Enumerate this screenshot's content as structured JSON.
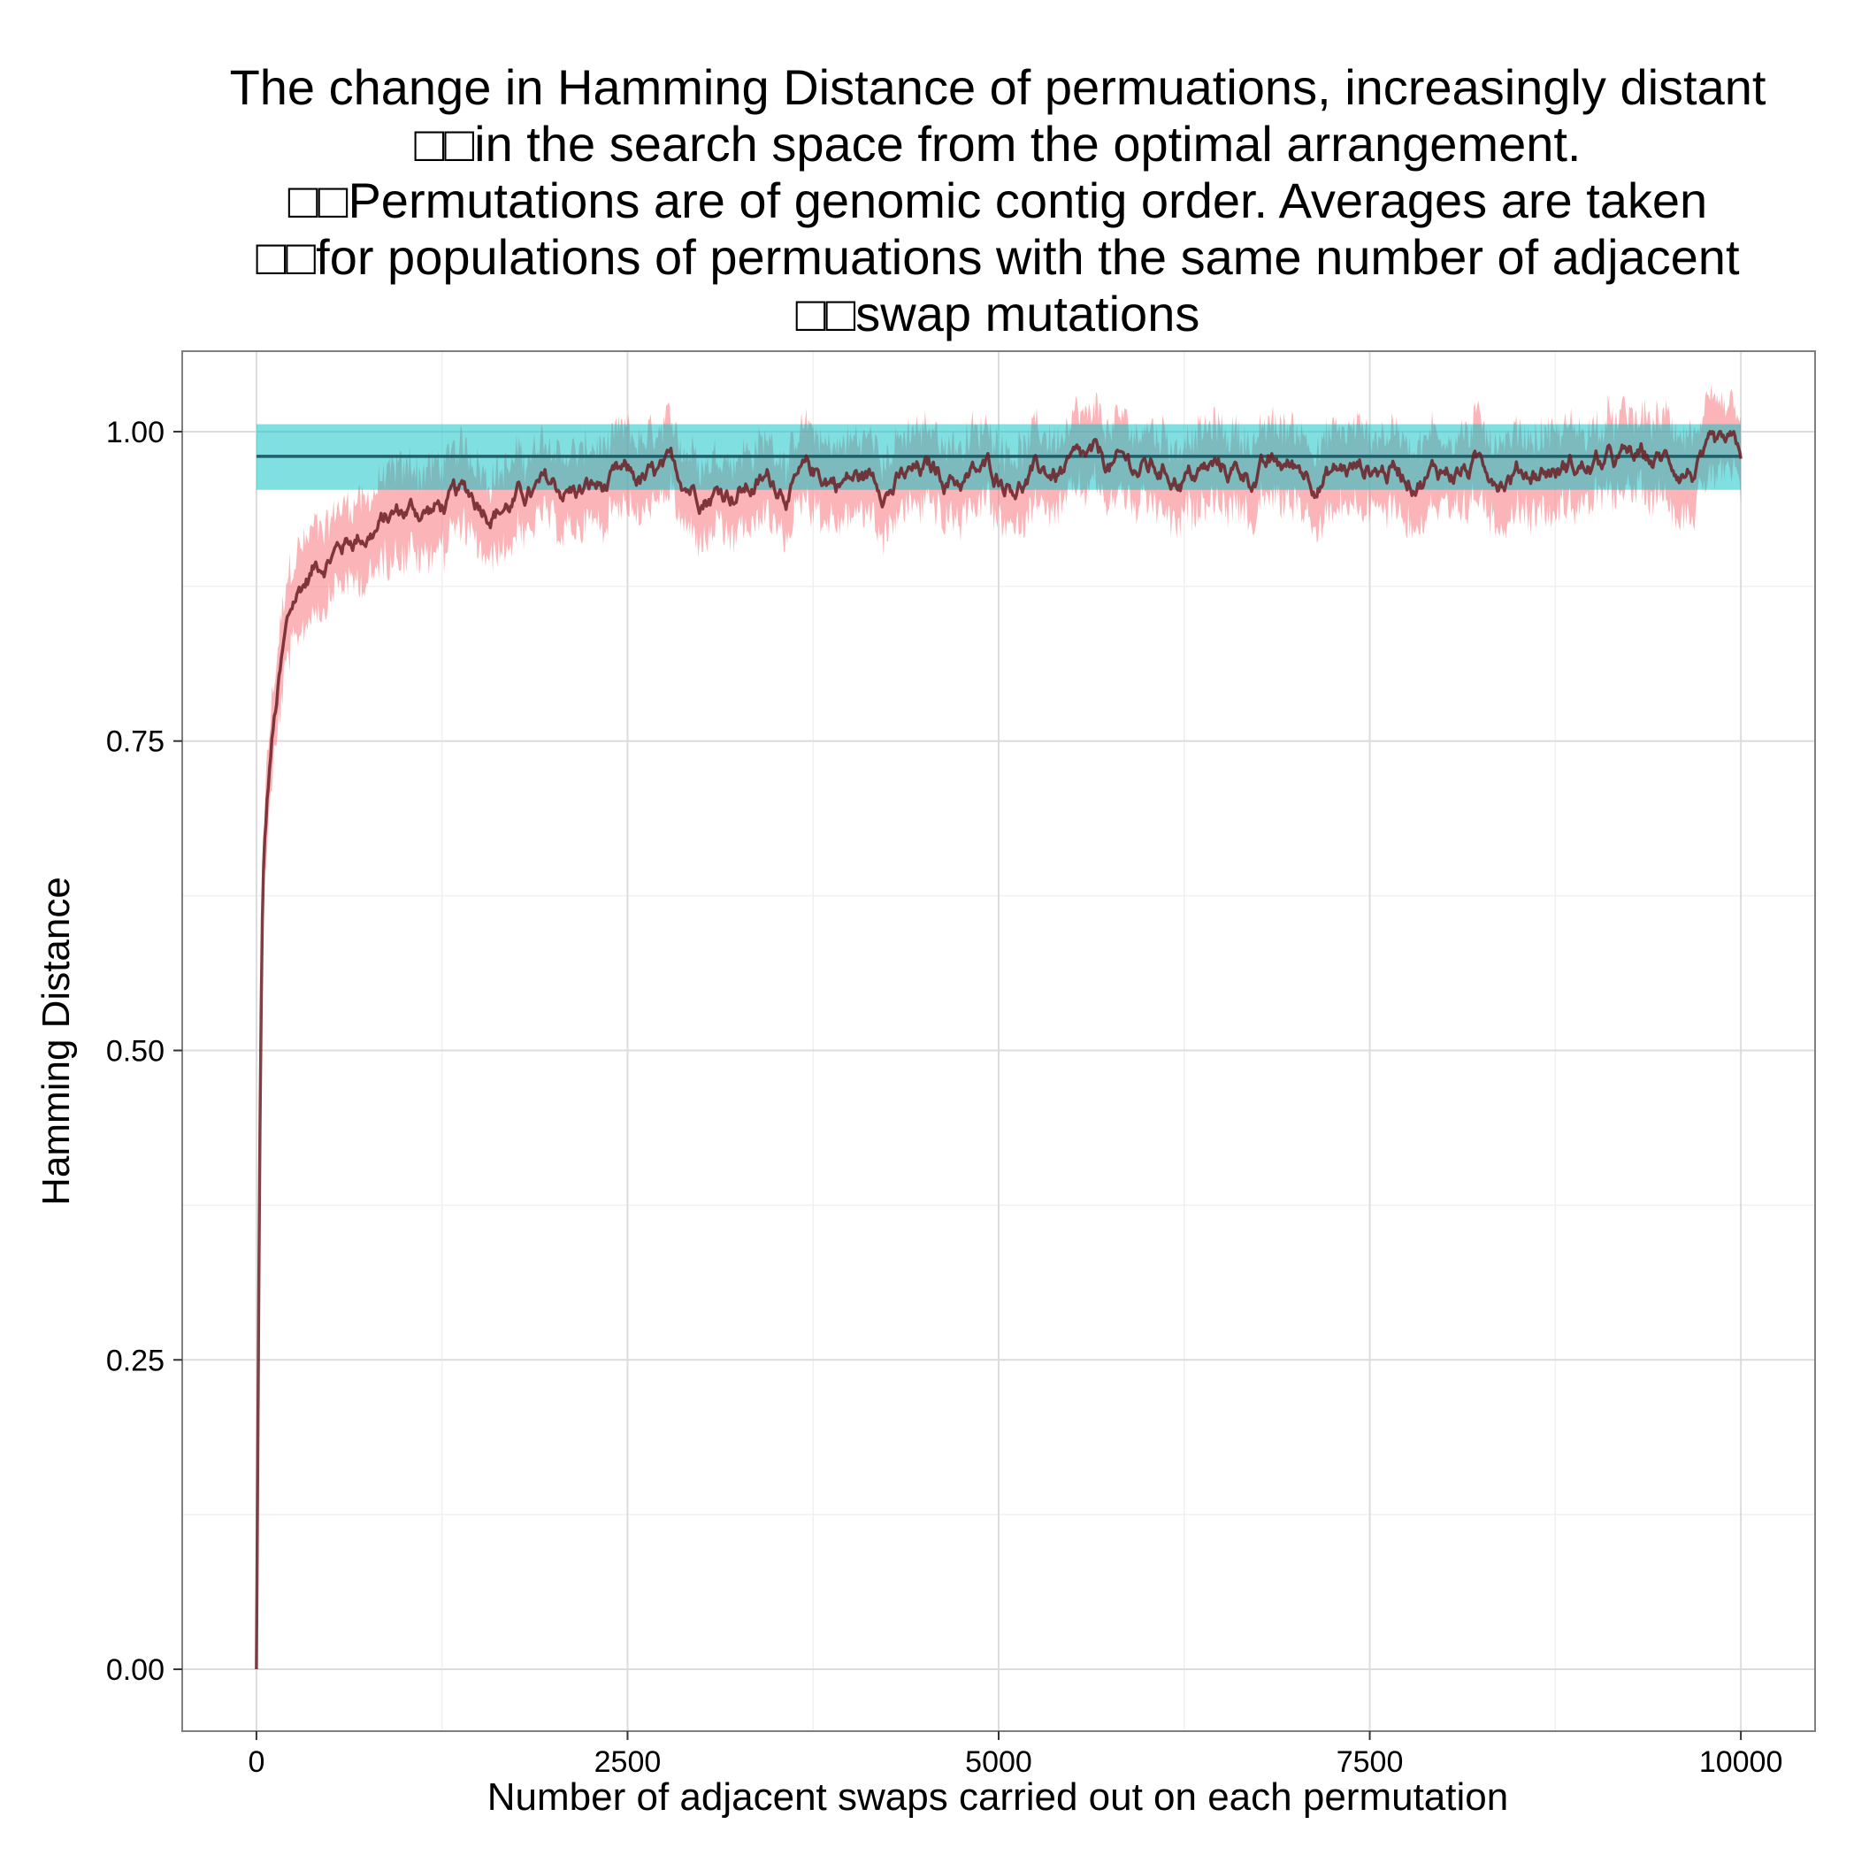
{
  "chart_data": {
    "type": "line",
    "title_lines": [
      "The change in Hamming Distance of permuations, increasingly distant",
      "□□in the search space from the optimal arrangement.",
      "□□Permutations are of genomic contig order. Averages are taken",
      "□□for populations of permuations with the same number of adjacent",
      "□□swap mutations"
    ],
    "xlabel": "Number of adjacent swaps carried out on each permutation",
    "ylabel": "Hamming Distance",
    "xlim": [
      -500,
      10500
    ],
    "ylim": [
      -0.05,
      1.065
    ],
    "x_ticks": [
      0,
      2500,
      5000,
      7500,
      10000
    ],
    "x_tick_labels": [
      "0",
      "2500",
      "5000",
      "7500",
      "10000"
    ],
    "y_ticks": [
      0,
      0.25,
      0.5,
      0.75,
      1.0
    ],
    "y_tick_labels": [
      "0.00",
      "0.25",
      "0.50",
      "0.75",
      "1.00"
    ],
    "grid": true,
    "legend": "none",
    "series": [
      {
        "line_color": "#6b1f24",
        "band_color": "#f8767d",
        "band_opacity": 0.55,
        "points": [
          [
            0,
            0.0
          ],
          [
            10,
            0.2
          ],
          [
            20,
            0.38
          ],
          [
            30,
            0.52
          ],
          [
            40,
            0.6
          ],
          [
            50,
            0.65
          ],
          [
            75,
            0.7
          ],
          [
            100,
            0.74
          ],
          [
            150,
            0.79
          ],
          [
            200,
            0.83
          ],
          [
            250,
            0.855
          ],
          [
            300,
            0.87
          ],
          [
            400,
            0.89
          ],
          [
            500,
            0.905
          ],
          [
            600,
            0.912
          ],
          [
            700,
            0.92
          ],
          [
            800,
            0.925
          ],
          [
            900,
            0.93
          ],
          [
            1000,
            0.935
          ],
          [
            1200,
            0.938
          ],
          [
            1400,
            0.942
          ],
          [
            1600,
            0.945
          ],
          [
            1800,
            0.948
          ],
          [
            2000,
            0.95
          ],
          [
            2250,
            0.952
          ],
          [
            2500,
            0.954
          ],
          [
            2750,
            0.956
          ],
          [
            3000,
            0.958
          ],
          [
            3250,
            0.959
          ],
          [
            3500,
            0.96
          ],
          [
            4000,
            0.962
          ],
          [
            4500,
            0.963
          ],
          [
            5000,
            0.965
          ],
          [
            5500,
            0.966
          ],
          [
            6000,
            0.967
          ],
          [
            6500,
            0.968
          ],
          [
            7000,
            0.969
          ],
          [
            7500,
            0.97
          ],
          [
            8000,
            0.971
          ],
          [
            8500,
            0.972
          ],
          [
            9000,
            0.972
          ],
          [
            9500,
            0.973
          ],
          [
            10000,
            0.97
          ]
        ],
        "band_halfwidth": [
          [
            0,
            0.0
          ],
          [
            50,
            0.03
          ],
          [
            200,
            0.035
          ],
          [
            500,
            0.03
          ],
          [
            1000,
            0.035
          ],
          [
            2000,
            0.03
          ],
          [
            5000,
            0.03
          ],
          [
            10000,
            0.03
          ]
        ]
      },
      {
        "line_color": "#1f5f6a",
        "band_color": "#00bfc4",
        "band_opacity": 0.5,
        "points": [
          [
            0,
            0.98
          ],
          [
            10000,
            0.98
          ]
        ],
        "band": [
          0.953,
          1.006
        ]
      }
    ]
  }
}
